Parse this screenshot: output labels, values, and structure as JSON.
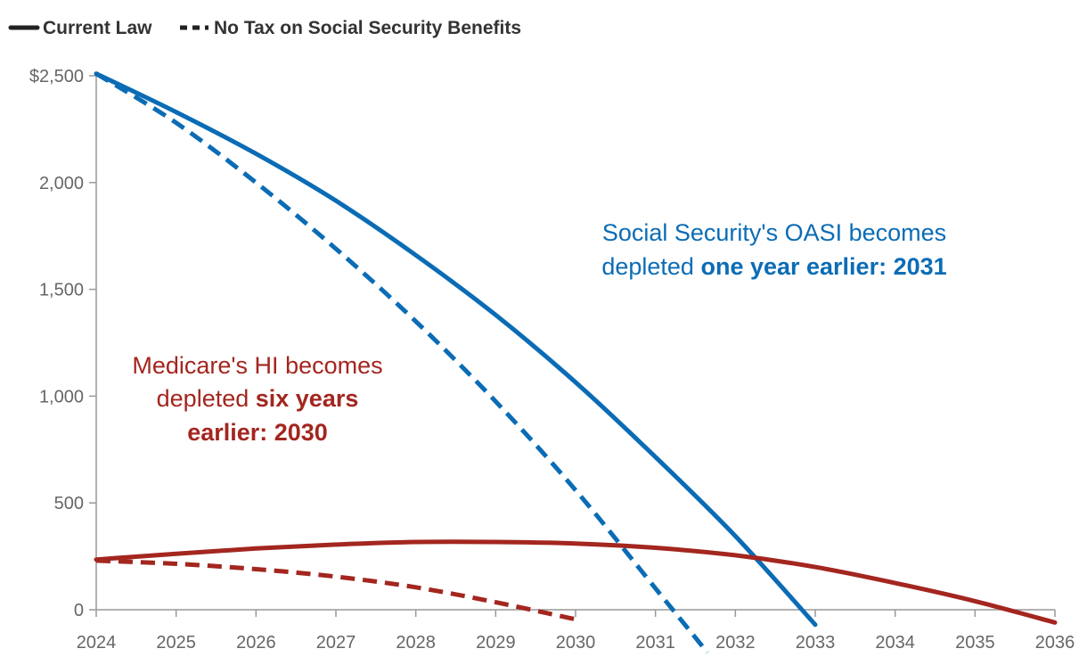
{
  "chart_data": {
    "type": "line",
    "title": "",
    "xlabel": "",
    "ylabel": "",
    "xlim": [
      2024,
      2036
    ],
    "ylim": [
      0,
      2500
    ],
    "x_ticks": [
      "2024",
      "2025",
      "2026",
      "2027",
      "2028",
      "2029",
      "2030",
      "2031",
      "2032",
      "2033",
      "2034",
      "2035",
      "2036"
    ],
    "y_ticks": [
      {
        "value": 0,
        "label": "0"
      },
      {
        "value": 500,
        "label": "500"
      },
      {
        "value": 1000,
        "label": "1,000"
      },
      {
        "value": 1500,
        "label": "1,500"
      },
      {
        "value": 2000,
        "label": "2,000"
      },
      {
        "value": 2500,
        "label": "$2,500"
      }
    ],
    "legend": [
      {
        "label": "Current Law",
        "style": "solid"
      },
      {
        "label": "No Tax on Social Security Benefits",
        "style": "dashed"
      }
    ],
    "series": [
      {
        "name": "Social Security OASI - Current Law",
        "color": "#0b6cb5",
        "style": "solid",
        "x": [
          2024,
          2025,
          2026,
          2027,
          2028,
          2029,
          2030,
          2031,
          2032,
          2033
        ],
        "values": [
          2510,
          2330,
          2135,
          1915,
          1660,
          1380,
          1065,
          715,
          345,
          -70
        ]
      },
      {
        "name": "Social Security OASI - No Tax on Social Security Benefits",
        "color": "#0b6cb5",
        "style": "dashed",
        "x": [
          2024,
          2025,
          2026,
          2027,
          2028,
          2029,
          2030,
          2031,
          2031.65
        ],
        "values": [
          2510,
          2280,
          2000,
          1690,
          1350,
          975,
          560,
          100,
          -200
        ]
      },
      {
        "name": "Medicare HI - Current Law",
        "color": "#a3261f",
        "style": "solid",
        "x": [
          2024,
          2025,
          2026,
          2027,
          2028,
          2029,
          2030,
          2031,
          2032,
          2033,
          2034,
          2035,
          2036
        ],
        "values": [
          235,
          262,
          287,
          305,
          317,
          317,
          310,
          290,
          255,
          200,
          125,
          40,
          -60
        ]
      },
      {
        "name": "Medicare HI - No Tax on Social Security Benefits",
        "color": "#a3261f",
        "style": "dashed",
        "x": [
          2024,
          2025,
          2026,
          2027,
          2028,
          2029,
          2030
        ],
        "values": [
          230,
          215,
          190,
          155,
          105,
          35,
          -45
        ]
      }
    ],
    "annotations": [
      {
        "id": "oasi",
        "color": "#0b6cb5",
        "line1": "Social Security's OASI becomes",
        "line2_normal": "depleted ",
        "line2_bold": "one year earlier: 2031"
      },
      {
        "id": "hi",
        "color": "#a3261f",
        "line1": "Medicare's HI becomes",
        "line2_normal": "depleted ",
        "line2_bold": "six years",
        "line3_bold": "earlier: 2030"
      }
    ]
  }
}
